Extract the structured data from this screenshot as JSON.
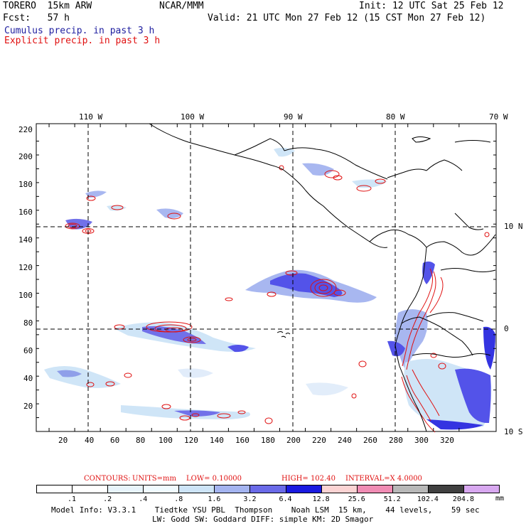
{
  "header": {
    "model": "TORERO  15km ARW",
    "center": "NCAR/MMM",
    "init": "Init: 12 UTC Sat 25 Feb 12",
    "fcst": "Fcst:   57 h",
    "valid": "Valid: 21 UTC Mon 27 Feb 12 (15 CST Mon 27 Feb 12)",
    "cumulus": "Cumulus precip. in past 3 h",
    "explicit": "Explicit precip. in past 3 h"
  },
  "map": {
    "top_labels": [
      "110 W",
      "100 W",
      "90 W",
      "80 W",
      "70 W"
    ],
    "right_labels": [
      "10 N",
      "0",
      "10 S"
    ],
    "y_ticks": [
      "220",
      "200",
      "180",
      "160",
      "140",
      "120",
      "100",
      "80",
      "60",
      "40",
      "20"
    ],
    "x_ticks": [
      "20",
      "40",
      "60",
      "80",
      "100",
      "120",
      "140",
      "160",
      "180",
      "200",
      "220",
      "240",
      "260",
      "280",
      "300",
      "320"
    ]
  },
  "contours_line": {
    "label": "CONTOURS:",
    "units": "UNITS=mm",
    "low": "LOW= 0.10000",
    "high": "HIGH= 102.40",
    "interval": "INTERVAL=X 4.0000"
  },
  "colorbar": {
    "labels": [
      ".1",
      ".2",
      ".4",
      ".8",
      "1.6",
      "3.2",
      "6.4",
      "12.8",
      "25.6",
      "51.2",
      "102.4",
      "204.8"
    ],
    "unit": "mm",
    "colors": [
      "#ffffff",
      "#ffffff",
      "#e8f4fb",
      "#f0fbff",
      "#cde4f7",
      "#a4b4f0",
      "#6a6ae8",
      "#1a1ae0",
      "#fbd3d3",
      "#f08cb4",
      "#b8b8b8",
      "#404040",
      "#d8a8f0"
    ]
  },
  "footer": {
    "line1": "Model Info: V3.3.1    Tiedtke YSU PBL  Thompson    Noah LSM  15 km,    44 levels,    59 sec",
    "line2": "LW: Godd SW: Goddard DIFF: simple KM: 2D Smagor"
  }
}
